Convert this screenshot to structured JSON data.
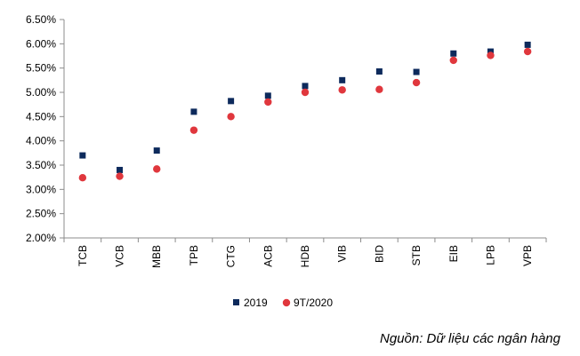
{
  "chart_data": {
    "type": "scatter",
    "title": "",
    "xlabel": "",
    "ylabel": "",
    "categories": [
      "TCB",
      "VCB",
      "MBB",
      "TPB",
      "CTG",
      "ACB",
      "HDB",
      "VIB",
      "BID",
      "STB",
      "EIB",
      "LPB",
      "VPB"
    ],
    "series": [
      {
        "name": "2019",
        "marker": "square",
        "color": "#0d2a5c",
        "values": [
          3.7,
          3.4,
          3.8,
          4.6,
          4.82,
          4.93,
          5.13,
          5.25,
          5.43,
          5.42,
          5.8,
          5.84,
          5.98
        ]
      },
      {
        "name": "9T/2020",
        "marker": "circle",
        "color": "#e0373d",
        "values": [
          3.24,
          3.27,
          3.42,
          4.22,
          4.5,
          4.8,
          5.0,
          5.05,
          5.06,
          5.2,
          5.66,
          5.76,
          5.84
        ]
      }
    ],
    "ylim": [
      2.0,
      6.5
    ],
    "yticks": [
      2.0,
      2.5,
      3.0,
      3.5,
      4.0,
      4.5,
      5.0,
      5.5,
      6.0,
      6.5
    ],
    "ytick_labels": [
      "2.00%",
      "2.50%",
      "3.00%",
      "3.50%",
      "4.00%",
      "4.50%",
      "5.00%",
      "5.50%",
      "6.00%",
      "6.50%"
    ],
    "legend_position": "bottom-left",
    "grid": false
  },
  "source": "Nguồn: Dữ liệu các ngân hàng",
  "colors": {
    "axis": "#8c8c8c"
  }
}
